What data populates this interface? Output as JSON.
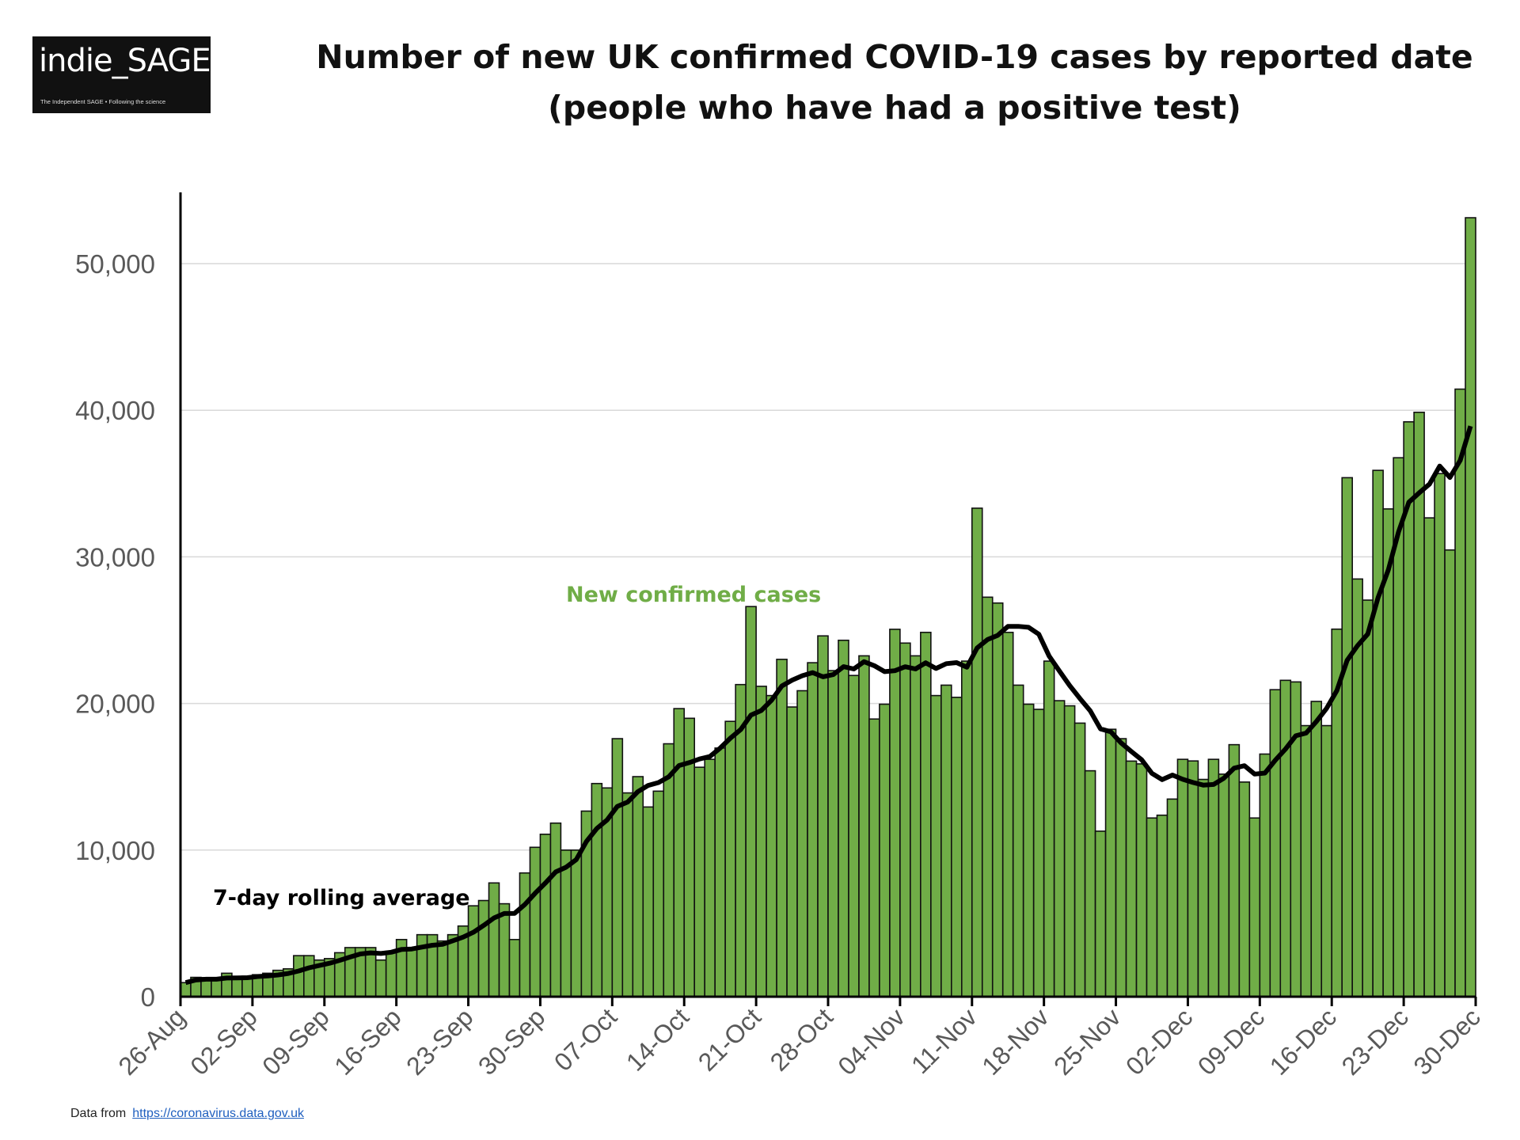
{
  "logo": {
    "name": "indie_SAGE",
    "tagline": "The Independent SAGE • Following the science"
  },
  "footer": {
    "label": "Data from",
    "link": "https://coronavirus.data.gov.uk"
  },
  "chart_data": {
    "type": "bar",
    "title": "Number of new UK confirmed COVID-19 cases by reported date",
    "subtitle": "(people who have had a positive test)",
    "xlabel": "",
    "ylabel": "",
    "ylim": [
      0,
      55000
    ],
    "yticks": [
      0,
      10000,
      20000,
      30000,
      40000,
      50000
    ],
    "ytick_labels": [
      "0",
      "10,000",
      "20,000",
      "30,000",
      "40,000",
      "50,000"
    ],
    "xtick_labels": [
      "26-Aug",
      "02-Sep",
      "09-Sep",
      "16-Sep",
      "23-Sep",
      "30-Sep",
      "07-Oct",
      "14-Oct",
      "21-Oct",
      "28-Oct",
      "04-Nov",
      "11-Nov",
      "18-Nov",
      "25-Nov",
      "02-Dec",
      "09-Dec",
      "16-Dec",
      "23-Dec",
      "30-Dec"
    ],
    "xtick_interval_days": 7,
    "start_date": "26-Aug",
    "grid": true,
    "bar_color": "#70ad47",
    "line_color": "#000000",
    "series": [
      {
        "name": "New confirmed cases",
        "type": "bar",
        "values": [
          960,
          1320,
          1300,
          1200,
          1600,
          1300,
          1400,
          1500,
          1600,
          1800,
          1900,
          2800,
          2800,
          2500,
          2600,
          3000,
          3350,
          3350,
          3350,
          2500,
          3100,
          3900,
          3250,
          4230,
          4230,
          3800,
          4230,
          4820,
          6200,
          6560,
          7760,
          6340,
          3900,
          8440,
          10190,
          11080,
          11840,
          10000,
          10000,
          12660,
          14540,
          14240,
          17600,
          13900,
          15010,
          12940,
          14020,
          17250,
          19650,
          18990,
          15650,
          16190,
          16960,
          18780,
          21290,
          26610,
          21170,
          20540,
          23010,
          19760,
          20870,
          22780,
          24610,
          22240,
          24310,
          21910,
          23250,
          18940,
          19950,
          25060,
          24120,
          23250,
          24850,
          20540,
          21250,
          20420,
          22890,
          33320,
          27250,
          26850,
          24850,
          21250,
          19950,
          19600,
          22890,
          20190,
          19840,
          18660,
          15410,
          11290,
          18240,
          17600,
          16070,
          15880,
          12190,
          12380,
          13480,
          16190,
          16080,
          14820,
          16190,
          15180,
          17190,
          14640,
          12190,
          16550,
          20940,
          21580,
          21470,
          18490,
          20140,
          18490,
          25070,
          35400,
          28490,
          27050,
          35900,
          33270,
          36760,
          39210,
          39860,
          32660,
          35680,
          30470,
          41440,
          53130
        ]
      },
      {
        "name": "7-day rolling average",
        "type": "line",
        "window": 7
      }
    ],
    "annotations": [
      {
        "text": "New confirmed cases",
        "color": "#70ad47"
      },
      {
        "text": "7-day rolling average",
        "color": "#000000"
      }
    ]
  }
}
